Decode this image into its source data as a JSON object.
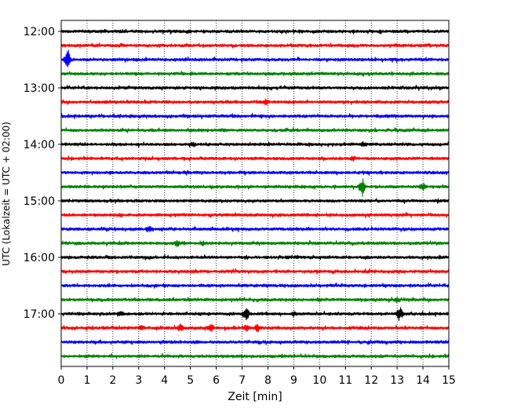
{
  "chart_data": {
    "type": "line",
    "title": "",
    "xlabel": "Zeit  [min]",
    "ylabel": "UTC (Lokalzeit = UTC + 02:00)",
    "xlim": [
      0,
      15
    ],
    "x_ticks": [
      "0",
      "1",
      "2",
      "3",
      "4",
      "5",
      "6",
      "7",
      "8",
      "9",
      "10",
      "11",
      "12",
      "13",
      "14",
      "15"
    ],
    "y_tick_labels": [
      "12:00",
      "13:00",
      "14:00",
      "15:00",
      "16:00",
      "17:00"
    ],
    "grid": "vertical dotted at each minute",
    "colors": [
      "#000000",
      "#ff0000",
      "#0000ff",
      "#008000"
    ],
    "traces": [
      {
        "time": "12:00",
        "color": "#000000"
      },
      {
        "time": "12:15",
        "color": "#ff0000"
      },
      {
        "time": "12:30",
        "color": "#0000ff",
        "events": [
          {
            "t": 0.25,
            "amp": 14
          }
        ]
      },
      {
        "time": "12:45",
        "color": "#008000"
      },
      {
        "time": "13:00",
        "color": "#000000"
      },
      {
        "time": "13:15",
        "color": "#ff0000",
        "events": [
          {
            "t": 7.9,
            "amp": 4
          }
        ]
      },
      {
        "time": "13:30",
        "color": "#0000ff"
      },
      {
        "time": "13:45",
        "color": "#008000"
      },
      {
        "time": "14:00",
        "color": "#000000",
        "events": [
          {
            "t": 5.1,
            "amp": 3
          },
          {
            "t": 11.7,
            "amp": 3
          }
        ]
      },
      {
        "time": "14:15",
        "color": "#ff0000",
        "events": [
          {
            "t": 11.3,
            "amp": 3
          }
        ]
      },
      {
        "time": "14:30",
        "color": "#0000ff"
      },
      {
        "time": "14:45",
        "color": "#008000",
        "events": [
          {
            "t": 11.65,
            "amp": 12
          },
          {
            "t": 14.0,
            "amp": 5
          }
        ]
      },
      {
        "time": "15:00",
        "color": "#000000"
      },
      {
        "time": "15:15",
        "color": "#ff0000"
      },
      {
        "time": "15:30",
        "color": "#0000ff",
        "events": [
          {
            "t": 3.4,
            "amp": 4
          }
        ]
      },
      {
        "time": "15:45",
        "color": "#008000",
        "events": [
          {
            "t": 4.5,
            "amp": 4
          },
          {
            "t": 5.5,
            "amp": 3
          }
        ]
      },
      {
        "time": "16:00",
        "color": "#000000"
      },
      {
        "time": "16:15",
        "color": "#ff0000"
      },
      {
        "time": "16:30",
        "color": "#0000ff"
      },
      {
        "time": "16:45",
        "color": "#008000",
        "events": [
          {
            "t": 10.0,
            "amp": 3
          },
          {
            "t": 13.0,
            "amp": 3
          }
        ]
      },
      {
        "time": "17:00",
        "color": "#000000",
        "events": [
          {
            "t": 7.15,
            "amp": 9
          },
          {
            "t": 13.1,
            "amp": 9
          },
          {
            "t": 2.3,
            "amp": 3
          },
          {
            "t": 9.0,
            "amp": 3
          }
        ]
      },
      {
        "time": "17:15",
        "color": "#ff0000",
        "events": [
          {
            "t": 4.6,
            "amp": 5
          },
          {
            "t": 5.8,
            "amp": 5
          },
          {
            "t": 7.2,
            "amp": 5
          },
          {
            "t": 7.6,
            "amp": 5
          },
          {
            "t": 3.1,
            "amp": 3
          }
        ]
      },
      {
        "time": "17:30",
        "color": "#0000ff"
      },
      {
        "time": "17:45",
        "color": "#008000"
      }
    ]
  }
}
